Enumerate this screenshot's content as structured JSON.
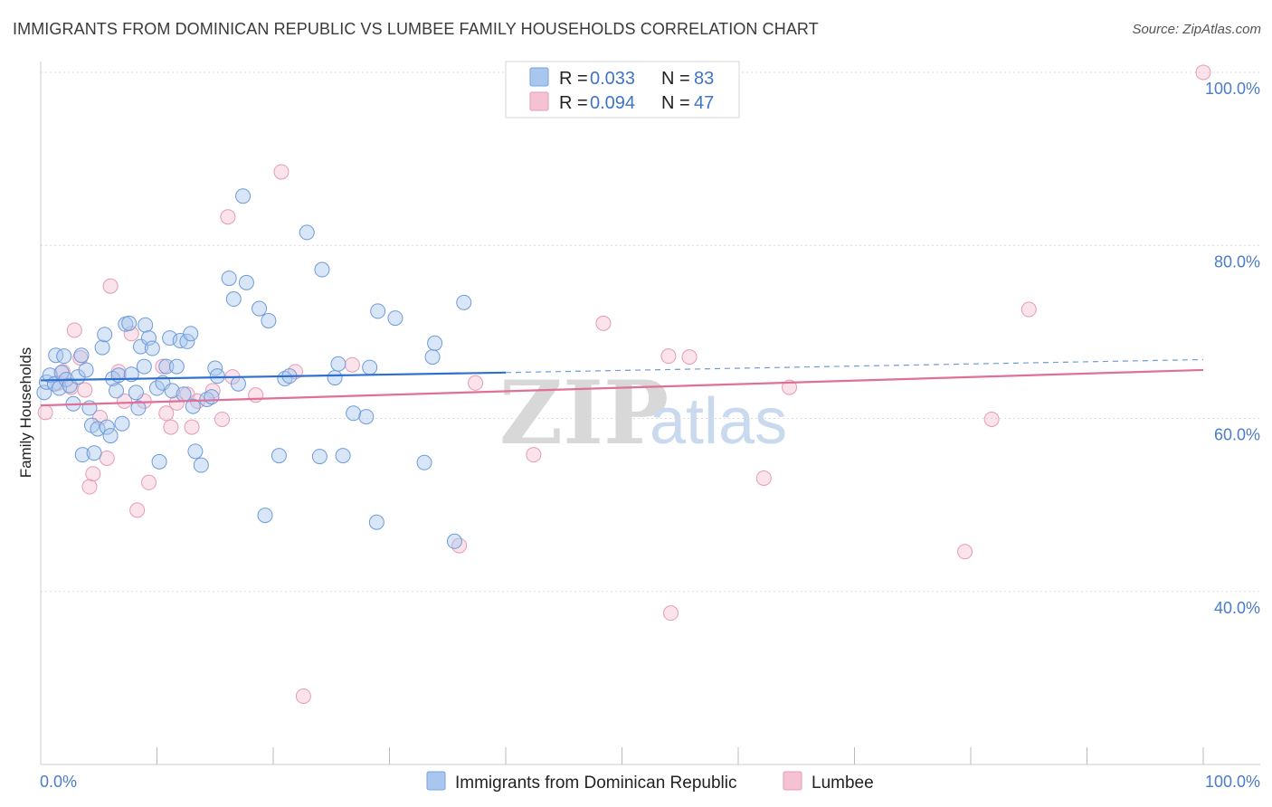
{
  "title": "IMMIGRANTS FROM DOMINICAN REPUBLIC VS LUMBEE FAMILY HOUSEHOLDS CORRELATION CHART",
  "source": "Source: ZipAtlas.com",
  "watermark": {
    "zip": "ZIP",
    "atlas": "atlas"
  },
  "colors": {
    "blue": "#3f74c9",
    "blue_fill": "#a9c7ee",
    "pink": "#e0709a",
    "pink_fill": "#f5b8cc",
    "grid": "#d9d9d9"
  },
  "legend": {
    "r_label": "R =",
    "n_label": "N =",
    "rows": [
      {
        "r": "0.033",
        "n": "83"
      },
      {
        "r": "0.094",
        "n": "47"
      }
    ]
  },
  "bottom_legend": [
    "Immigrants from Dominican Republic",
    "Lumbee"
  ],
  "chart_data": {
    "type": "scatter",
    "title": "IMMIGRANTS FROM DOMINICAN REPUBLIC VS LUMBEE FAMILY HOUSEHOLDS CORRELATION CHART",
    "xlabel": "",
    "ylabel": "Family Households",
    "xlim": [
      0,
      100
    ],
    "ylim": [
      20,
      100
    ],
    "x_tick_labels": [
      "0.0%",
      "100.0%"
    ],
    "y_ticks": [
      40,
      60,
      80,
      100
    ],
    "y_tick_labels": [
      "40.0%",
      "60.0%",
      "80.0%",
      "100.0%"
    ],
    "legend_position": "top-center",
    "series": [
      {
        "name": "Immigrants from Dominican Republic",
        "R": 0.033,
        "N": 83,
        "trend": {
          "x": [
            0,
            40
          ],
          "y": [
            64.4,
            65.3
          ],
          "dashed_to": [
            100,
            66.8
          ]
        },
        "points": [
          [
            0.3,
            63.0
          ],
          [
            0.5,
            64.2
          ],
          [
            0.8,
            65.0
          ],
          [
            1.2,
            64.0
          ],
          [
            1.3,
            67.3
          ],
          [
            1.6,
            63.5
          ],
          [
            1.8,
            65.3
          ],
          [
            2.0,
            67.2
          ],
          [
            2.2,
            64.5
          ],
          [
            2.5,
            63.8
          ],
          [
            2.8,
            61.7
          ],
          [
            3.2,
            64.8
          ],
          [
            3.5,
            67.3
          ],
          [
            3.6,
            55.8
          ],
          [
            3.9,
            65.6
          ],
          [
            4.2,
            61.2
          ],
          [
            4.4,
            59.2
          ],
          [
            4.6,
            56.0
          ],
          [
            4.9,
            58.8
          ],
          [
            5.3,
            68.2
          ],
          [
            5.5,
            69.7
          ],
          [
            5.7,
            59.0
          ],
          [
            6.0,
            58.0
          ],
          [
            6.2,
            64.6
          ],
          [
            6.5,
            63.2
          ],
          [
            6.7,
            65.0
          ],
          [
            7.0,
            59.4
          ],
          [
            7.3,
            70.9
          ],
          [
            7.6,
            71.0
          ],
          [
            7.8,
            65.1
          ],
          [
            8.2,
            63.0
          ],
          [
            8.4,
            61.2
          ],
          [
            8.6,
            68.3
          ],
          [
            8.9,
            66.0
          ],
          [
            9.0,
            70.8
          ],
          [
            9.3,
            69.3
          ],
          [
            9.6,
            68.1
          ],
          [
            10.0,
            63.5
          ],
          [
            10.2,
            55.0
          ],
          [
            10.5,
            64.1
          ],
          [
            10.8,
            66.0
          ],
          [
            11.1,
            69.3
          ],
          [
            11.3,
            63.2
          ],
          [
            11.7,
            66.0
          ],
          [
            12.0,
            69.0
          ],
          [
            12.3,
            62.8
          ],
          [
            12.6,
            68.9
          ],
          [
            12.9,
            69.8
          ],
          [
            13.1,
            61.4
          ],
          [
            13.3,
            56.2
          ],
          [
            13.8,
            54.6
          ],
          [
            14.3,
            62.2
          ],
          [
            14.7,
            62.5
          ],
          [
            15.0,
            65.8
          ],
          [
            15.2,
            64.9
          ],
          [
            16.2,
            76.2
          ],
          [
            16.6,
            73.8
          ],
          [
            17.0,
            64.0
          ],
          [
            17.4,
            85.7
          ],
          [
            17.7,
            75.7
          ],
          [
            18.8,
            72.7
          ],
          [
            19.3,
            48.8
          ],
          [
            19.6,
            71.3
          ],
          [
            20.5,
            55.7
          ],
          [
            21.0,
            64.6
          ],
          [
            21.4,
            64.9
          ],
          [
            22.9,
            81.5
          ],
          [
            24.2,
            77.2
          ],
          [
            25.3,
            64.7
          ],
          [
            25.6,
            66.3
          ],
          [
            26.0,
            55.7
          ],
          [
            26.9,
            60.6
          ],
          [
            28.0,
            60.2
          ],
          [
            28.3,
            65.9
          ],
          [
            29.0,
            72.4
          ],
          [
            30.5,
            71.6
          ],
          [
            33.0,
            54.9
          ],
          [
            33.7,
            67.1
          ],
          [
            33.9,
            68.7
          ],
          [
            35.6,
            45.8
          ],
          [
            36.4,
            73.4
          ],
          [
            28.9,
            48.0
          ],
          [
            24.0,
            55.6
          ]
        ]
      },
      {
        "name": "Lumbee",
        "R": 0.094,
        "N": 47,
        "trend": {
          "x": [
            0,
            100
          ],
          "y": [
            61.5,
            65.6
          ]
        },
        "points": [
          [
            0.4,
            60.7
          ],
          [
            1.5,
            64.1
          ],
          [
            1.9,
            65.4
          ],
          [
            2.6,
            63.6
          ],
          [
            2.9,
            70.2
          ],
          [
            3.4,
            67.0
          ],
          [
            3.8,
            63.3
          ],
          [
            4.2,
            52.1
          ],
          [
            4.5,
            53.6
          ],
          [
            5.1,
            60.1
          ],
          [
            5.7,
            55.4
          ],
          [
            6.0,
            75.3
          ],
          [
            6.7,
            65.4
          ],
          [
            7.2,
            62.0
          ],
          [
            7.8,
            69.8
          ],
          [
            8.3,
            49.4
          ],
          [
            8.9,
            62.0
          ],
          [
            9.3,
            52.6
          ],
          [
            10.5,
            66.0
          ],
          [
            10.8,
            60.6
          ],
          [
            11.2,
            59.0
          ],
          [
            11.7,
            61.8
          ],
          [
            12.6,
            62.8
          ],
          [
            13.0,
            59.0
          ],
          [
            13.5,
            62.0
          ],
          [
            14.8,
            63.2
          ],
          [
            15.6,
            59.9
          ],
          [
            16.1,
            83.3
          ],
          [
            16.5,
            64.8
          ],
          [
            18.5,
            62.7
          ],
          [
            20.7,
            88.5
          ],
          [
            21.9,
            65.4
          ],
          [
            22.6,
            27.9
          ],
          [
            26.8,
            66.2
          ],
          [
            36.0,
            45.3
          ],
          [
            37.4,
            64.1
          ],
          [
            42.4,
            55.8
          ],
          [
            48.4,
            71.0
          ],
          [
            54.0,
            67.2
          ],
          [
            54.2,
            37.5
          ],
          [
            55.8,
            67.1
          ],
          [
            62.2,
            53.1
          ],
          [
            64.4,
            63.6
          ],
          [
            79.5,
            44.6
          ],
          [
            81.8,
            59.9
          ],
          [
            85.0,
            72.6
          ],
          [
            100.0,
            100.0
          ]
        ]
      }
    ]
  }
}
